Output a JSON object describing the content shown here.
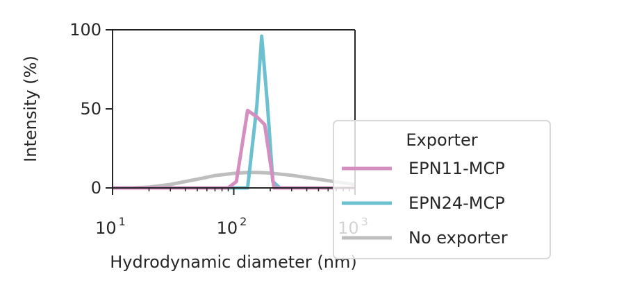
{
  "chart_data": {
    "type": "line",
    "xlabel": "Hydrodynamic diameter (nm)",
    "ylabel": "Intensity (%)",
    "xscale": "log",
    "xlim": [
      10,
      1000
    ],
    "ylim": [
      0,
      100
    ],
    "x_ticks": [
      {
        "base": "10",
        "exp": "1",
        "value": 10
      },
      {
        "base": "10",
        "exp": "2",
        "value": 100
      },
      {
        "base": "10",
        "exp": "3",
        "value": 1000
      }
    ],
    "y_ticks": [
      {
        "label": "0",
        "value": 0
      },
      {
        "label": "50",
        "value": 50
      },
      {
        "label": "100",
        "value": 100
      }
    ],
    "grid": false,
    "legend": {
      "title": "Exporter",
      "placement": "right"
    },
    "series": [
      {
        "name": "EPN11-MCP",
        "color": "#d48fc0",
        "x": [
          10,
          20,
          50,
          90,
          105,
          130,
          155,
          180,
          215,
          250,
          400,
          1000
        ],
        "y": [
          0,
          0,
          0,
          0,
          4,
          49,
          45,
          40,
          0,
          0,
          0,
          0
        ]
      },
      {
        "name": "EPN24-MCP",
        "color": "#6dc0cf",
        "x": [
          10,
          20,
          50,
          100,
          130,
          155,
          170,
          190,
          210,
          240,
          400,
          1000
        ],
        "y": [
          0,
          0,
          0,
          0,
          0,
          52,
          96,
          52,
          4,
          0,
          0,
          0
        ]
      },
      {
        "name": "No exporter",
        "color": "#bebebe",
        "x": [
          10,
          15,
          20,
          30,
          50,
          70,
          100,
          130,
          160,
          200,
          300,
          500,
          700,
          1000
        ],
        "y": [
          0,
          0.1,
          0.5,
          2.2,
          5.5,
          7.8,
          9.2,
          9.8,
          9.8,
          9.4,
          8,
          5.5,
          3.8,
          2.2
        ]
      }
    ]
  }
}
